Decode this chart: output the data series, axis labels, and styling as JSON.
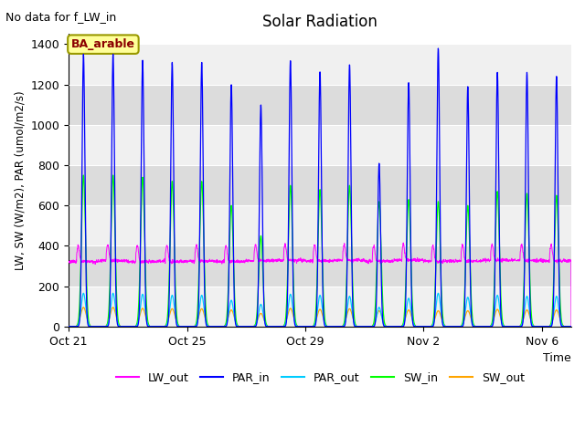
{
  "title": "Solar Radiation",
  "note": "No data for f_LW_in",
  "ylabel": "LW, SW (W/m2), PAR (umol/m2/s)",
  "xlabel": "Time",
  "ylim": [
    0,
    1450
  ],
  "yticks": [
    0,
    200,
    400,
    600,
    800,
    1000,
    1200,
    1400
  ],
  "n_days": 17,
  "colors": {
    "LW_out": "#ff00ff",
    "PAR_in": "#0000ff",
    "PAR_out": "#00ccff",
    "SW_in": "#00ff00",
    "SW_out": "#ffa500"
  },
  "xtick_labels": [
    "Oct 21",
    "Oct 25",
    "Oct 29",
    "Nov 2",
    "Nov 6"
  ],
  "xtick_positions": [
    0,
    4,
    8,
    12,
    16
  ],
  "annotation_text": "BA_arable",
  "band_colors": [
    "#f0f0f0",
    "#dcdcdc"
  ]
}
